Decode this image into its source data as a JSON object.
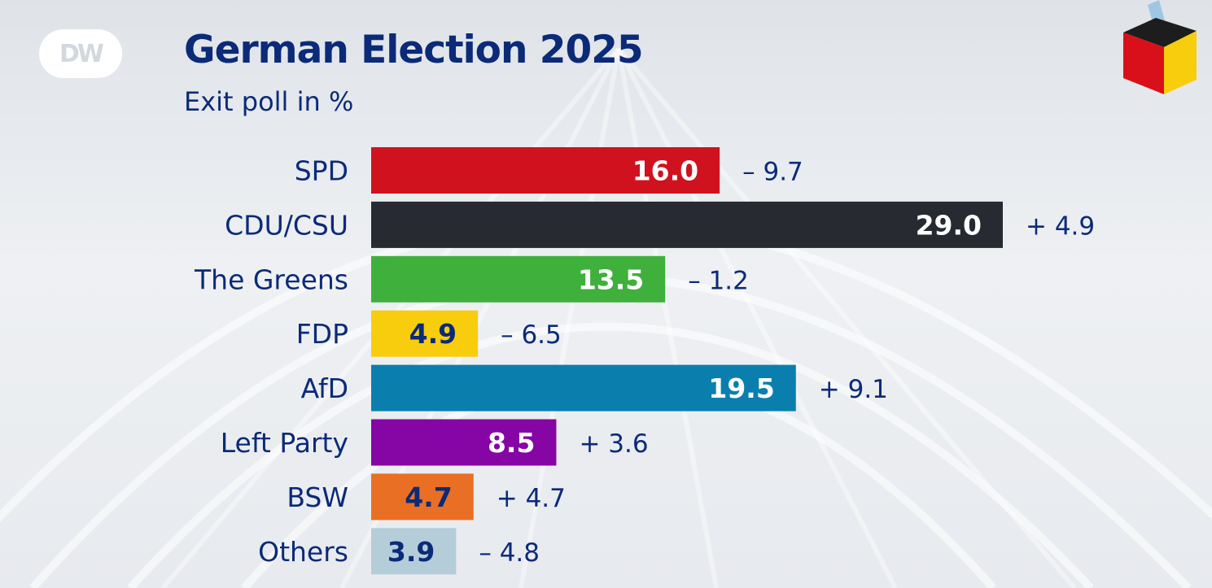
{
  "logo": "DW",
  "chart_data": {
    "type": "bar",
    "orientation": "horizontal",
    "title": "German Election 2025",
    "subtitle": "Exit poll in %",
    "categories": [
      "SPD",
      "CDU/CSU",
      "The Greens",
      "FDP",
      "AfD",
      "Left Party",
      "BSW",
      "Others"
    ],
    "values": [
      16.0,
      29.0,
      13.5,
      4.9,
      19.5,
      8.5,
      4.7,
      3.9
    ],
    "value_labels": [
      "16.0",
      "29.0",
      "13.5",
      "4.9",
      "19.5",
      "8.5",
      "4.7",
      "3.9"
    ],
    "changes": [
      "– 9.7",
      "+ 4.9",
      "– 1.2",
      "– 6.5",
      "+ 9.1",
      "+ 3.6",
      "+ 4.7",
      "– 4.8"
    ],
    "colors": [
      "#d0121f",
      "#272a31",
      "#3fb03c",
      "#f8cd0e",
      "#0a7fae",
      "#8506a4",
      "#e96f24",
      "#b5ccd9"
    ],
    "value_label_colors": [
      "#ffffff",
      "#ffffff",
      "#ffffff",
      "#0b2a78",
      "#ffffff",
      "#ffffff",
      "#0b2a78",
      "#0b2a78"
    ],
    "xlim": [
      0,
      29.0
    ],
    "grid": false,
    "legend": "none"
  }
}
